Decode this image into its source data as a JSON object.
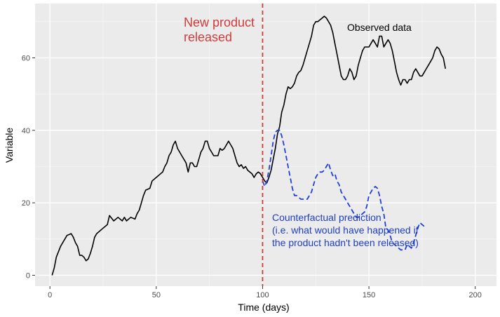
{
  "colors": {
    "panel": "#ebebeb",
    "grid_major": "#ffffff",
    "grid_minor": "#f5f5f5",
    "observed": "#000000",
    "counterfactual": "#1f3fd6",
    "release_line": "#d13b3b",
    "release_text": "#d13b3b",
    "cf_text": "#1f3fbf"
  },
  "chart_data": {
    "type": "line",
    "title": "",
    "xlabel": "Time (days)",
    "ylabel": "Variable",
    "xlim": [
      -7,
      210
    ],
    "ylim": [
      -3,
      75
    ],
    "grid": true,
    "x_ticks": [
      0,
      50,
      100,
      150,
      200
    ],
    "y_ticks": [
      0,
      20,
      40,
      60
    ],
    "series": [
      {
        "name": "Observed data",
        "style": "solid",
        "points": [
          [
            1,
            0
          ],
          [
            2,
            2
          ],
          [
            3,
            5
          ],
          [
            5,
            8
          ],
          [
            7,
            10
          ],
          [
            8,
            11
          ],
          [
            10,
            11.5
          ],
          [
            11,
            10.5
          ],
          [
            12,
            9
          ],
          [
            13,
            8
          ],
          [
            14,
            5.5
          ],
          [
            15,
            5.5
          ],
          [
            16,
            5
          ],
          [
            17,
            4
          ],
          [
            18,
            4.5
          ],
          [
            19,
            6
          ],
          [
            20,
            8
          ],
          [
            21,
            10.5
          ],
          [
            22,
            11.5
          ],
          [
            25,
            13
          ],
          [
            27,
            14
          ],
          [
            28,
            16.5
          ],
          [
            30,
            15
          ],
          [
            32,
            16
          ],
          [
            34,
            15
          ],
          [
            35,
            16
          ],
          [
            36,
            15
          ],
          [
            38,
            16
          ],
          [
            40,
            15.5
          ],
          [
            41,
            17
          ],
          [
            42,
            18
          ],
          [
            43,
            20
          ],
          [
            44,
            22
          ],
          [
            45,
            23.5
          ],
          [
            47,
            24
          ],
          [
            48,
            26
          ],
          [
            50,
            27
          ],
          [
            52,
            28
          ],
          [
            53,
            28.5
          ],
          [
            54,
            30
          ],
          [
            55,
            31
          ],
          [
            56,
            33
          ],
          [
            57,
            34
          ],
          [
            58,
            36
          ],
          [
            59,
            37
          ],
          [
            60,
            35
          ],
          [
            62,
            33
          ],
          [
            63,
            32
          ],
          [
            64,
            31
          ],
          [
            65,
            28.5
          ],
          [
            66,
            31
          ],
          [
            67,
            31
          ],
          [
            68,
            30
          ],
          [
            69,
            30
          ],
          [
            70,
            32
          ],
          [
            71,
            34
          ],
          [
            72,
            35
          ],
          [
            73,
            37
          ],
          [
            74,
            37
          ],
          [
            75,
            35
          ],
          [
            76,
            34
          ],
          [
            77,
            33
          ],
          [
            79,
            33
          ],
          [
            80,
            35
          ],
          [
            81,
            34.5
          ],
          [
            82,
            35
          ],
          [
            83,
            36
          ],
          [
            84,
            37
          ],
          [
            85,
            36
          ],
          [
            86,
            35
          ],
          [
            87,
            33
          ],
          [
            88,
            31
          ],
          [
            89,
            30
          ],
          [
            90,
            30.5
          ],
          [
            91,
            29.5
          ],
          [
            92,
            30
          ],
          [
            93,
            29
          ],
          [
            95,
            28
          ],
          [
            96,
            27
          ],
          [
            97,
            28
          ],
          [
            98,
            28.5
          ],
          [
            99,
            28
          ],
          [
            100,
            27
          ],
          [
            101,
            26
          ],
          [
            102,
            25.5
          ],
          [
            103,
            27
          ],
          [
            104,
            29
          ],
          [
            105,
            32
          ],
          [
            106,
            35
          ],
          [
            107,
            39
          ],
          [
            108,
            41
          ],
          [
            109,
            45
          ],
          [
            110,
            47
          ],
          [
            111,
            50
          ],
          [
            112,
            52
          ],
          [
            113,
            51.5
          ],
          [
            114,
            52
          ],
          [
            115,
            53
          ],
          [
            116,
            55
          ],
          [
            117,
            56
          ],
          [
            118,
            56.5
          ],
          [
            119,
            58
          ],
          [
            120,
            60
          ],
          [
            121,
            62
          ],
          [
            122,
            64
          ],
          [
            123,
            66
          ],
          [
            124,
            69
          ],
          [
            125,
            70
          ],
          [
            126,
            70
          ],
          [
            127,
            70.5
          ],
          [
            128,
            71
          ],
          [
            129,
            71.5
          ],
          [
            130,
            71
          ],
          [
            131,
            70
          ],
          [
            132,
            69
          ],
          [
            133,
            67
          ],
          [
            134,
            64
          ],
          [
            135,
            61
          ],
          [
            136,
            58
          ],
          [
            137,
            55
          ],
          [
            138,
            54
          ],
          [
            139,
            54
          ],
          [
            140,
            55
          ],
          [
            141,
            57
          ],
          [
            142,
            56
          ],
          [
            143,
            54
          ],
          [
            144,
            55
          ],
          [
            145,
            58
          ],
          [
            146,
            60
          ],
          [
            147,
            62
          ],
          [
            148,
            63
          ],
          [
            149,
            63
          ],
          [
            150,
            63
          ],
          [
            151,
            64
          ],
          [
            152,
            65
          ],
          [
            153,
            64
          ],
          [
            154,
            63
          ],
          [
            155,
            66
          ],
          [
            156,
            66
          ],
          [
            157,
            63
          ],
          [
            158,
            64
          ],
          [
            159,
            65
          ],
          [
            160,
            64
          ],
          [
            161,
            62
          ],
          [
            162,
            59
          ],
          [
            163,
            56
          ],
          [
            164,
            54
          ],
          [
            165,
            52.5
          ],
          [
            166,
            54
          ],
          [
            167,
            54
          ],
          [
            168,
            53
          ],
          [
            169,
            54
          ],
          [
            170,
            54
          ],
          [
            171,
            56
          ],
          [
            172,
            57
          ],
          [
            173,
            56
          ],
          [
            174,
            55
          ],
          [
            175,
            55
          ],
          [
            176,
            56
          ],
          [
            177,
            57
          ],
          [
            178,
            58
          ],
          [
            179,
            59
          ],
          [
            180,
            60
          ],
          [
            181,
            62
          ],
          [
            182,
            63
          ],
          [
            183,
            62.5
          ],
          [
            184,
            61
          ],
          [
            185,
            60
          ],
          [
            186,
            57
          ]
        ]
      },
      {
        "name": "Counterfactual prediction",
        "style": "dashed",
        "points": [
          [
            100,
            26
          ],
          [
            101,
            24.5
          ],
          [
            102,
            26
          ],
          [
            103,
            29
          ],
          [
            104,
            33
          ],
          [
            105,
            37
          ],
          [
            106,
            39.5
          ],
          [
            107,
            40
          ],
          [
            108,
            40
          ],
          [
            109,
            38.5
          ],
          [
            110,
            36
          ],
          [
            111,
            33
          ],
          [
            112,
            30
          ],
          [
            113,
            27
          ],
          [
            114,
            24
          ],
          [
            115,
            22
          ],
          [
            116,
            22
          ],
          [
            117,
            21.5
          ],
          [
            118,
            21
          ],
          [
            119,
            21
          ],
          [
            120,
            21
          ],
          [
            121,
            21
          ],
          [
            122,
            22
          ],
          [
            123,
            23
          ],
          [
            124,
            25
          ],
          [
            125,
            27
          ],
          [
            126,
            28
          ],
          [
            127,
            28.5
          ],
          [
            128,
            28.5
          ],
          [
            129,
            29
          ],
          [
            130,
            30
          ],
          [
            131,
            31
          ],
          [
            132,
            29
          ],
          [
            133,
            27.5
          ],
          [
            134,
            28
          ],
          [
            135,
            26
          ],
          [
            136,
            25
          ],
          [
            137,
            23
          ],
          [
            138,
            22
          ],
          [
            139,
            21
          ],
          [
            140,
            20
          ],
          [
            141,
            19
          ],
          [
            142,
            18
          ],
          [
            143,
            17
          ],
          [
            144,
            16
          ],
          [
            145,
            16
          ],
          [
            146,
            16.5
          ],
          [
            147,
            17
          ],
          [
            148,
            17.5
          ],
          [
            149,
            19
          ],
          [
            150,
            22
          ],
          [
            151,
            23
          ],
          [
            152,
            24
          ],
          [
            153,
            24.5
          ],
          [
            154,
            24
          ],
          [
            155,
            22
          ],
          [
            156,
            19
          ],
          [
            157,
            17
          ],
          [
            158,
            13
          ],
          [
            159,
            12.5
          ],
          [
            160,
            11
          ],
          [
            161,
            9
          ],
          [
            162,
            8.5
          ],
          [
            163,
            8
          ],
          [
            164,
            7.5
          ],
          [
            165,
            7
          ],
          [
            166,
            7
          ],
          [
            167,
            7
          ],
          [
            168,
            8.5
          ],
          [
            169,
            8
          ],
          [
            170,
            7.5
          ],
          [
            171,
            9
          ],
          [
            172,
            11
          ],
          [
            173,
            13
          ],
          [
            174,
            14.5
          ],
          [
            175,
            14
          ],
          [
            176,
            13.5
          ]
        ]
      }
    ],
    "annotations": [
      {
        "id": "release",
        "lines": [
          "New product",
          "released"
        ]
      },
      {
        "id": "observed",
        "lines": [
          "Observed data"
        ]
      },
      {
        "id": "counterfactual",
        "lines": [
          "Counterfactual prediction",
          "(i.e. what would have happened if",
          "the product hadn't been released)"
        ]
      }
    ],
    "vline": {
      "x": 100,
      "style": "dashed"
    }
  }
}
